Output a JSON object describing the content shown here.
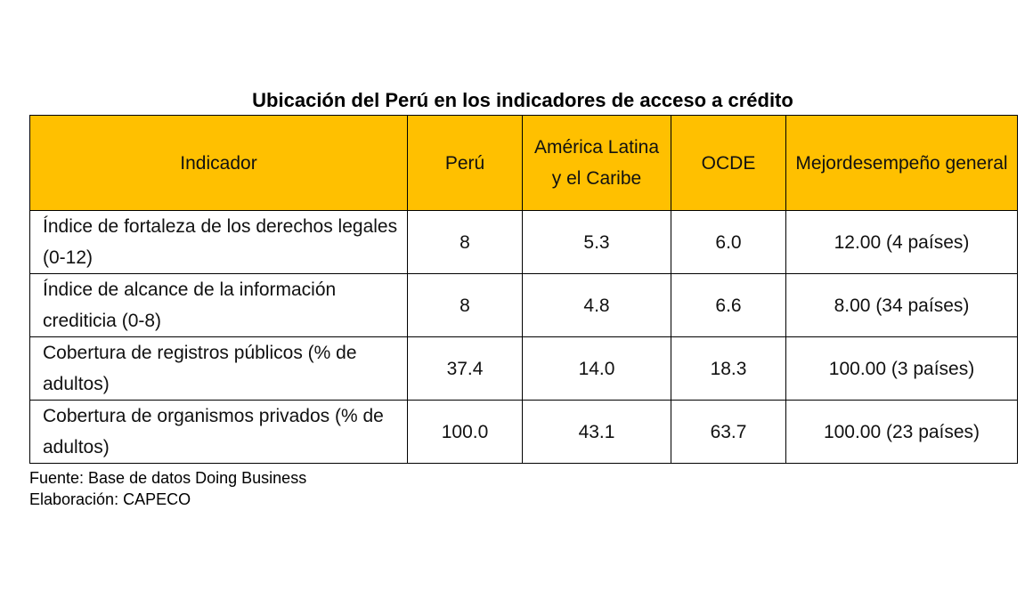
{
  "title": "Ubicación del Perú en los indicadores de acceso a crédito",
  "table": {
    "header": [
      "Indicador",
      "Perú",
      "América Latina y el Caribe",
      "OCDE",
      "Mejordesempeño general"
    ],
    "rows": [
      [
        "Índice de fortaleza de los derechos legales (0-12)",
        "8",
        "5.3",
        "6.0",
        "12.00 (4 países)"
      ],
      [
        "Índice de alcance de la información crediticia (0-8)",
        "8",
        "4.8",
        "6.6",
        "8.00 (34 países)"
      ],
      [
        "Cobertura de registros públicos (% de adultos)",
        "37.4",
        "14.0",
        "18.3",
        "100.00 (3 países)"
      ],
      [
        "Cobertura de organismos privados (% de adultos)",
        "100.0",
        "43.1",
        "63.7",
        "100.00 (23 países)"
      ]
    ]
  },
  "footer": [
    "Fuente: Base de datos Doing Business",
    "Elaboración: CAPECO"
  ]
}
